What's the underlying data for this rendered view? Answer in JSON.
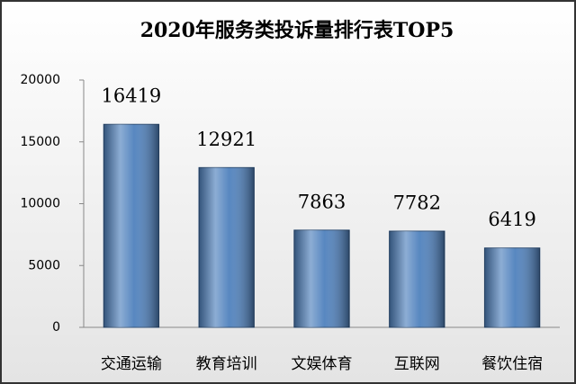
{
  "chart_data": {
    "type": "bar",
    "title": "2020年服务类投诉量排行表TOP5",
    "categories": [
      "交通运输",
      "教育培训",
      "文娱体育",
      "互联网",
      "餐饮住宿"
    ],
    "values": [
      16419,
      12921,
      7863,
      7782,
      6419
    ],
    "color": "#4f81bd",
    "ylim": [
      0,
      20000
    ],
    "yticks": [
      0,
      5000,
      10000,
      15000,
      20000
    ],
    "grid": false
  }
}
